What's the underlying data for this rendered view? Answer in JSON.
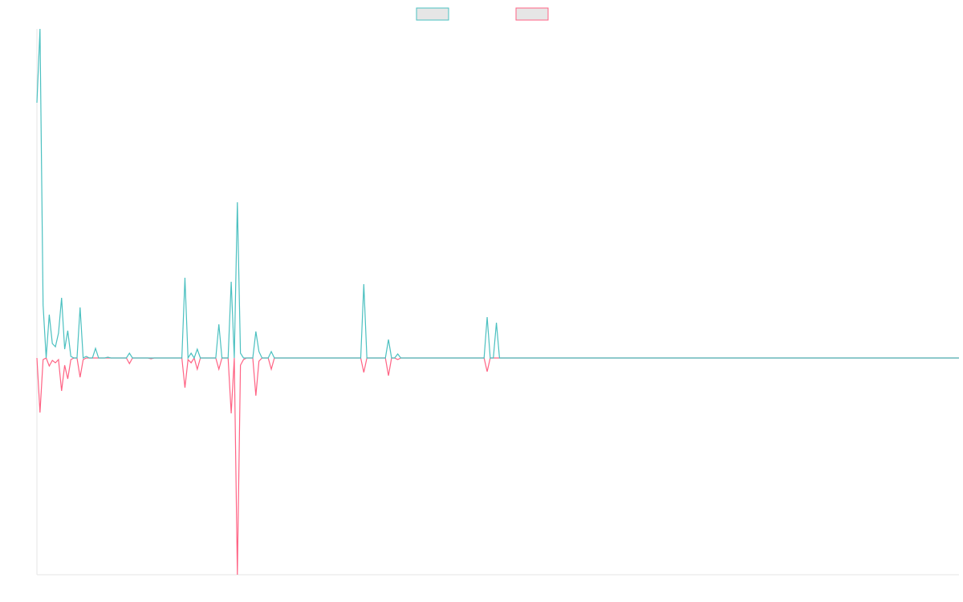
{
  "chart_data": {
    "type": "line",
    "legend": "top",
    "ylim": [
      -270,
      410
    ],
    "categories": [
      null,
      null,
      null,
      null,
      null,
      null,
      null,
      null,
      null,
      null,
      null,
      null,
      null,
      null,
      null,
      null,
      null,
      null,
      null,
      null,
      null,
      null,
      null,
      null,
      null,
      null,
      null,
      null,
      null,
      null,
      null,
      null,
      null,
      null,
      null,
      null,
      null,
      null,
      null,
      null,
      null,
      null,
      null,
      null,
      null,
      null,
      null,
      null,
      null,
      null,
      null,
      null,
      null,
      null,
      null,
      null,
      null,
      null,
      null,
      null,
      null,
      null,
      null,
      null,
      null,
      null,
      null,
      null,
      null,
      null,
      null,
      null,
      null,
      null,
      null,
      null,
      null,
      null,
      null,
      null,
      null,
      null,
      null,
      null,
      null,
      null,
      null,
      null,
      null,
      null,
      null,
      null,
      null,
      null,
      null,
      null,
      null,
      null,
      null,
      null,
      null,
      null,
      null,
      null,
      null,
      null,
      null,
      null,
      null,
      null,
      null,
      null,
      null,
      null,
      null,
      null,
      null,
      null,
      null,
      null,
      null,
      null,
      null,
      null,
      null,
      null,
      null,
      null,
      null,
      null,
      null,
      null,
      null,
      null,
      null,
      null,
      null,
      null,
      null,
      null,
      null,
      null,
      null,
      null,
      null,
      null,
      null,
      null,
      null,
      null,
      null,
      null,
      null,
      null,
      null,
      null,
      null,
      null,
      null,
      null,
      null,
      null,
      null,
      null,
      null,
      null,
      null,
      null,
      null,
      null,
      null,
      null,
      null,
      null,
      null,
      null,
      null,
      null,
      null,
      null,
      null,
      null,
      null,
      null,
      null,
      null,
      null,
      null,
      null,
      null,
      null,
      null,
      null,
      null,
      null,
      null,
      null,
      null,
      null,
      null,
      null,
      null,
      null,
      null,
      null,
      null,
      null,
      null,
      null,
      null,
      null,
      null,
      null,
      null,
      null,
      null,
      null,
      null,
      null,
      null,
      null,
      null,
      null,
      null,
      null,
      null,
      null,
      null,
      null,
      null,
      null,
      null,
      null,
      null,
      null,
      null,
      null,
      null,
      null,
      null,
      null,
      null,
      null,
      null,
      null,
      null,
      null,
      null,
      null,
      null,
      null,
      null,
      null,
      null,
      null,
      null,
      null,
      null,
      null,
      null,
      null,
      null,
      null,
      null,
      null,
      null,
      null,
      null,
      null,
      null,
      null,
      null,
      null,
      null,
      null,
      null,
      null,
      null,
      null,
      null,
      null,
      null,
      null,
      null,
      null,
      null,
      null,
      null,
      null,
      null,
      null,
      null,
      null,
      null,
      null,
      null,
      null,
      null,
      null,
      null
    ],
    "series": [
      {
        "color": "#4bc0c0",
        "values": [
          318,
          410,
          66,
          0,
          54,
          18,
          14,
          31,
          75,
          11,
          34,
          2,
          0,
          0,
          63,
          0,
          2,
          0,
          0,
          12,
          0,
          0,
          0,
          1,
          0,
          0,
          0,
          0,
          0,
          0,
          6,
          0,
          0,
          0,
          0,
          0,
          0,
          0,
          0,
          0,
          0,
          0,
          0,
          0,
          0,
          0,
          0,
          0,
          100,
          0,
          6,
          0,
          11,
          0,
          0,
          0,
          0,
          0,
          0,
          42,
          0,
          0,
          0,
          95,
          0,
          194,
          6,
          0,
          0,
          0,
          0,
          33,
          8,
          0,
          0,
          0,
          8,
          0,
          0,
          0,
          0,
          0,
          0,
          0,
          0,
          0,
          0,
          0,
          0,
          0,
          0,
          0,
          0,
          0,
          0,
          0,
          0,
          0,
          0,
          0,
          0,
          0,
          0,
          0,
          0,
          0,
          92,
          0,
          0,
          0,
          0,
          0,
          0,
          0,
          23,
          0,
          0,
          5,
          0,
          0,
          0,
          0,
          0,
          0,
          0,
          0,
          0,
          0,
          0,
          0,
          0,
          0,
          0,
          0,
          0,
          0,
          0,
          0,
          0,
          0,
          0,
          0,
          0,
          0,
          0,
          0,
          51,
          0,
          0,
          44,
          0,
          0,
          0,
          0,
          0,
          0,
          0,
          0,
          0,
          0,
          0,
          0,
          0,
          0,
          0,
          0,
          0,
          0,
          0,
          0,
          0,
          0,
          0,
          0,
          0,
          0,
          0,
          0,
          0,
          0,
          0,
          0,
          0,
          0,
          0,
          0,
          0,
          0,
          0,
          0,
          0,
          0,
          0,
          0,
          0,
          0,
          0,
          0,
          0,
          0,
          0,
          0,
          0,
          0,
          0,
          0,
          0,
          0,
          0,
          0,
          0,
          0,
          0,
          0,
          0,
          0,
          0,
          0,
          0,
          0,
          0,
          0,
          0,
          0,
          0,
          0,
          0,
          0,
          0,
          0,
          0,
          0,
          0,
          0,
          0,
          0,
          0,
          0,
          0,
          0,
          0,
          0,
          0,
          0,
          0,
          0,
          0,
          0,
          0,
          0,
          0,
          0,
          0,
          0,
          0,
          0,
          0,
          0,
          0,
          0,
          0,
          0,
          0,
          0,
          0,
          0,
          0,
          0,
          0,
          0,
          0,
          0,
          0,
          0,
          0,
          0,
          0,
          0,
          0,
          0,
          0,
          0,
          0,
          0,
          0,
          0,
          0,
          0,
          0,
          0,
          0,
          0,
          0,
          0,
          0,
          0,
          0,
          0,
          0,
          0
        ]
      },
      {
        "color": "#ff6384",
        "values": [
          0,
          -68,
          -2,
          0,
          -10,
          -3,
          -6,
          -2,
          -41,
          -9,
          -26,
          -2,
          0,
          0,
          -24,
          -2,
          0,
          0,
          0,
          0,
          0,
          0,
          0,
          0,
          0,
          0,
          0,
          0,
          0,
          0,
          -7,
          0,
          0,
          0,
          0,
          0,
          0,
          -1,
          0,
          0,
          0,
          0,
          0,
          0,
          0,
          0,
          0,
          0,
          -37,
          -2,
          -6,
          0,
          -14,
          0,
          0,
          0,
          0,
          0,
          0,
          -14,
          0,
          0,
          0,
          -69,
          0,
          -270,
          -9,
          -2,
          0,
          0,
          0,
          -47,
          -4,
          0,
          0,
          0,
          -14,
          0,
          0,
          0,
          0,
          0,
          0,
          0,
          0,
          0,
          0,
          0,
          0,
          0,
          0,
          0,
          0,
          0,
          0,
          0,
          0,
          0,
          0,
          0,
          0,
          0,
          0,
          0,
          0,
          0,
          -18,
          0,
          0,
          0,
          0,
          0,
          0,
          0,
          -22,
          0,
          0,
          -2,
          0,
          0,
          0,
          0,
          0,
          0,
          0,
          0,
          0,
          0,
          0,
          0,
          0,
          0,
          0,
          0,
          0,
          0,
          0,
          0,
          0,
          0,
          0,
          0,
          0,
          0,
          0,
          0,
          -17,
          0,
          0,
          0,
          0,
          0,
          0,
          0,
          0,
          0,
          0,
          0,
          0,
          0,
          0,
          0,
          0,
          0,
          0,
          0,
          0,
          0,
          0,
          0,
          0,
          0,
          0,
          0,
          0,
          0,
          0,
          0,
          0,
          0,
          0,
          0,
          0,
          0,
          0,
          0,
          0,
          0,
          0,
          0,
          0,
          0,
          0,
          0,
          0,
          0,
          0,
          0,
          0,
          0,
          0,
          0,
          0,
          0,
          0,
          0,
          0,
          0,
          0,
          0,
          0,
          0,
          0,
          0,
          0,
          0,
          0,
          0,
          0,
          0,
          0,
          0,
          0,
          0,
          0,
          0,
          0,
          0,
          0,
          0,
          0,
          0,
          0,
          0,
          0,
          0,
          0,
          0,
          0,
          0,
          0,
          0,
          0,
          0,
          0,
          0,
          0,
          0,
          0,
          0,
          0,
          0,
          0,
          0,
          0,
          0,
          0,
          0,
          0,
          0,
          0,
          0,
          0,
          0,
          0,
          0,
          0,
          0,
          0,
          0,
          0,
          0,
          0,
          0,
          0,
          0,
          0,
          0,
          0,
          0,
          0,
          0,
          0,
          0,
          0,
          0,
          0,
          0,
          0,
          0,
          0,
          0,
          0,
          0,
          0,
          0,
          0,
          0,
          0,
          0
        ]
      }
    ]
  }
}
